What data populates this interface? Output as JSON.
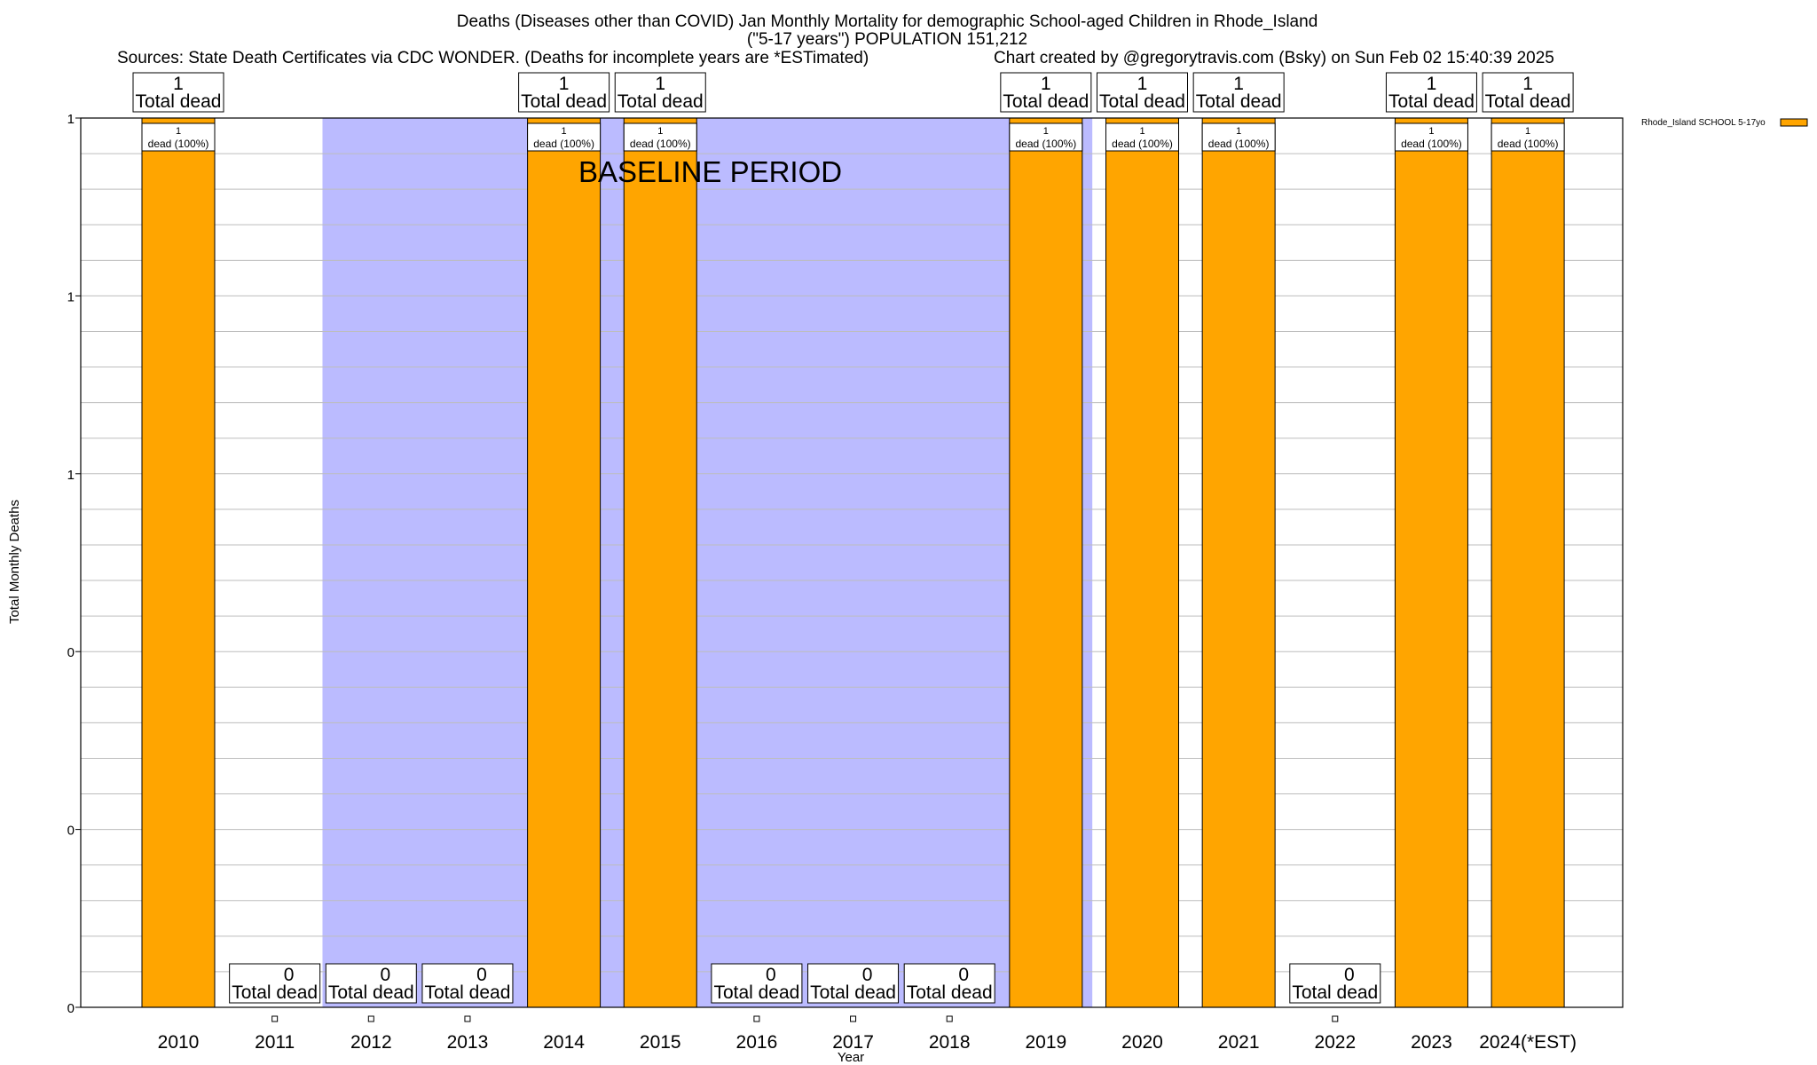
{
  "chart_data": {
    "type": "bar",
    "title_line1": "Deaths (Diseases other than COVID) Jan Monthly Mortality for demographic School-aged Children in Rhode_Island",
    "title_line2": "(\"5-17 years\") POPULATION 151,212",
    "sources": "Sources: State Death Certificates via CDC WONDER. (Deaths for incomplete years are *ESTimated)",
    "credit": "Chart created by @gregorytravis.com (Bsky) on Sun Feb 02 15:40:39 2025",
    "xlabel": "Year",
    "ylabel": "Total Monthly Deaths",
    "ylim": [
      0,
      1
    ],
    "ytick_values": [
      0,
      0.2,
      0.4,
      0.6,
      0.8,
      1.0
    ],
    "ytick_labels": [
      "0",
      "0",
      "0",
      "1",
      "1",
      "1"
    ],
    "categories": [
      "2010",
      "2011",
      "2012",
      "2013",
      "2014",
      "2015",
      "2016",
      "2017",
      "2018",
      "2019",
      "2020",
      "2021",
      "2022",
      "2023",
      "2024(*EST)"
    ],
    "series": [
      {
        "name": "Rhode_Island SCHOOL 5-17yo",
        "color": "#ffa500",
        "values": [
          1,
          0,
          0,
          0,
          1,
          1,
          0,
          0,
          0,
          1,
          1,
          1,
          0,
          1,
          1
        ]
      }
    ],
    "total_label": "Total dead",
    "segment_label": "dead (100%)",
    "baseline_label": "BASELINE PERIOD",
    "baseline_start": "2012",
    "baseline_end": "2019",
    "baseline_color": "#bbbbff",
    "legend": [
      "Rhode_Island SCHOOL 5-17yo"
    ],
    "legend_position": "top-right"
  }
}
